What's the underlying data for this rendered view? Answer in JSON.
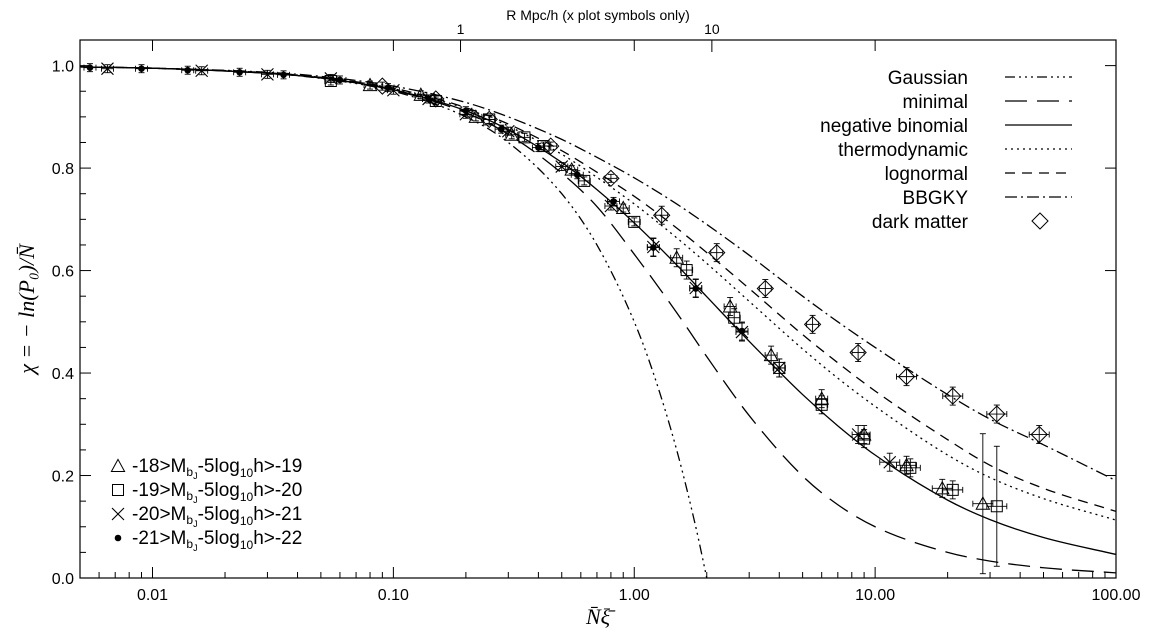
{
  "chart_data": {
    "type": "line",
    "title": "",
    "xlabel": "N̄ξ̄",
    "ylabel": "χ = − ln(P₀)/N̄",
    "xscale": "log",
    "xlim": [
      0.005,
      100
    ],
    "ylim": [
      0.0,
      1.05
    ],
    "x_ticks": [
      {
        "value": 0.01,
        "label": "0.01"
      },
      {
        "value": 0.1,
        "label": "0.10"
      },
      {
        "value": 1,
        "label": "1.00"
      },
      {
        "value": 10,
        "label": "10.00"
      },
      {
        "value": 100,
        "label": "100.00"
      }
    ],
    "y_ticks": [
      {
        "value": 0.0,
        "label": "0.0"
      },
      {
        "value": 0.2,
        "label": "0.2"
      },
      {
        "value": 0.4,
        "label": "0.4"
      },
      {
        "value": 0.6,
        "label": "0.6"
      },
      {
        "value": 0.8,
        "label": "0.8"
      },
      {
        "value": 1.0,
        "label": "1.0"
      }
    ],
    "top_axis": {
      "label": "R Mpc/h (x plot symbols only)",
      "ticks": [
        {
          "label": "1",
          "at_x": 0.19
        },
        {
          "label": "10",
          "at_x": 2.1
        }
      ]
    },
    "grid": false,
    "legend_curves_position": "top-right",
    "legend_points_position": "bottom-left",
    "curves": [
      {
        "name": "Gaussian",
        "dash": "dash-dot-dot-dot",
        "x": [
          0.005,
          0.01,
          0.03,
          0.05,
          0.1,
          0.2,
          0.3,
          0.5,
          0.7,
          1.0,
          1.2,
          1.5,
          1.8,
          2.0
        ],
        "y": [
          0.9975,
          0.995,
          0.985,
          0.975,
          0.95,
          0.9,
          0.85,
          0.75,
          0.65,
          0.5,
          0.4,
          0.25,
          0.1,
          0.0
        ]
      },
      {
        "name": "minimal",
        "dash": "long-dash",
        "x": [
          0.005,
          0.01,
          0.03,
          0.05,
          0.1,
          0.2,
          0.3,
          0.5,
          0.7,
          1.0,
          1.5,
          2.0,
          3.0,
          5.0,
          7.0,
          10.0,
          20.0,
          30.0,
          50.0,
          100.0
        ],
        "y": [
          0.9975,
          0.995,
          0.985,
          0.976,
          0.952,
          0.908,
          0.866,
          0.79,
          0.725,
          0.632,
          0.518,
          0.432,
          0.317,
          0.199,
          0.143,
          0.1,
          0.05,
          0.033,
          0.02,
          0.01
        ]
      },
      {
        "name": "negative binomial",
        "dash": "solid",
        "x": [
          0.005,
          0.01,
          0.03,
          0.05,
          0.1,
          0.2,
          0.3,
          0.5,
          0.7,
          1.0,
          1.5,
          2.0,
          3.0,
          5.0,
          7.0,
          10.0,
          20.0,
          30.0,
          50.0,
          100.0
        ],
        "y": [
          0.9975,
          0.995,
          0.985,
          0.976,
          0.953,
          0.912,
          0.875,
          0.811,
          0.758,
          0.693,
          0.611,
          0.549,
          0.462,
          0.358,
          0.297,
          0.24,
          0.152,
          0.114,
          0.079,
          0.046
        ]
      },
      {
        "name": "thermodynamic",
        "dash": "dotted",
        "x": [
          0.005,
          0.01,
          0.03,
          0.05,
          0.1,
          0.2,
          0.3,
          0.5,
          0.7,
          1.0,
          1.5,
          2.0,
          3.0,
          5.0,
          7.0,
          10.0,
          20.0,
          30.0,
          50.0,
          100.0
        ],
        "y": [
          0.9975,
          0.995,
          0.986,
          0.977,
          0.955,
          0.916,
          0.882,
          0.827,
          0.782,
          0.73,
          0.664,
          0.614,
          0.54,
          0.447,
          0.39,
          0.335,
          0.24,
          0.196,
          0.155,
          0.113
        ]
      },
      {
        "name": "lognormal",
        "dash": "short-dash",
        "x": [
          0.005,
          0.01,
          0.03,
          0.05,
          0.1,
          0.2,
          0.3,
          0.5,
          0.7,
          1.0,
          1.5,
          2.0,
          3.0,
          5.0,
          7.0,
          10.0,
          20.0,
          30.0,
          50.0,
          100.0
        ],
        "y": [
          0.9975,
          0.995,
          0.986,
          0.977,
          0.956,
          0.918,
          0.886,
          0.834,
          0.792,
          0.745,
          0.683,
          0.635,
          0.565,
          0.475,
          0.42,
          0.365,
          0.27,
          0.22,
          0.175,
          0.13
        ]
      },
      {
        "name": "BBGKY",
        "dash": "dash-dot",
        "x": [
          0.005,
          0.01,
          0.03,
          0.05,
          0.1,
          0.2,
          0.3,
          0.5,
          0.7,
          1.0,
          1.5,
          2.0,
          3.0,
          5.0,
          7.0,
          10.0,
          20.0,
          30.0,
          50.0,
          100.0
        ],
        "y": [
          0.9975,
          0.995,
          0.987,
          0.979,
          0.96,
          0.928,
          0.9,
          0.856,
          0.821,
          0.781,
          0.73,
          0.69,
          0.63,
          0.55,
          0.5,
          0.45,
          0.358,
          0.31,
          0.26,
          0.19
        ]
      }
    ],
    "point_series": [
      {
        "name": "-18>M_bJ-5log10h>-19",
        "marker": "triangle",
        "x": [
          0.08,
          0.13,
          0.22,
          0.31,
          0.55,
          0.9,
          1.5,
          2.5,
          3.7,
          6.0,
          9.0,
          13.5,
          19.0,
          28.0
        ],
        "y": [
          0.962,
          0.943,
          0.9,
          0.865,
          0.797,
          0.722,
          0.625,
          0.53,
          0.435,
          0.35,
          0.28,
          0.22,
          0.175,
          0.145
        ]
      },
      {
        "name": "-19>M_bJ-5log10h>-20",
        "marker": "square",
        "x": [
          0.055,
          0.15,
          0.25,
          0.35,
          0.42,
          0.62,
          1.0,
          1.65,
          2.6,
          4.0,
          6.0,
          9.0,
          14.0,
          21.0,
          32.0
        ],
        "y": [
          0.97,
          0.931,
          0.895,
          0.86,
          0.843,
          0.775,
          0.695,
          0.601,
          0.508,
          0.41,
          0.338,
          0.272,
          0.215,
          0.172,
          0.14
        ]
      },
      {
        "name": "-20>M_bJ-5log10h>-21",
        "marker": "cross",
        "x": [
          0.0065,
          0.016,
          0.03,
          0.055,
          0.1,
          0.14,
          0.2,
          0.3,
          0.5,
          0.8,
          1.2,
          1.8,
          2.8,
          4.0,
          8.5,
          11.5
        ],
        "y": [
          0.994,
          0.99,
          0.983,
          0.975,
          0.952,
          0.935,
          0.905,
          0.872,
          0.803,
          0.726,
          0.646,
          0.566,
          0.48,
          0.41,
          0.28,
          0.226
        ]
      },
      {
        "name": "-21>M_bJ-5log10h>-22",
        "marker": "dot",
        "x": [
          0.0055,
          0.009,
          0.014,
          0.023,
          0.035,
          0.06,
          0.095,
          0.14,
          0.2,
          0.28,
          0.4,
          0.58,
          0.82,
          1.2,
          1.8,
          2.8
        ],
        "y": [
          0.996,
          0.994,
          0.991,
          0.987,
          0.982,
          0.972,
          0.957,
          0.935,
          0.912,
          0.876,
          0.84,
          0.787,
          0.735,
          0.645,
          0.565,
          0.482
        ]
      },
      {
        "name": "dark matter",
        "marker": "diamond",
        "x": [
          0.09,
          0.15,
          0.25,
          0.45,
          0.8,
          1.3,
          2.2,
          3.5,
          5.5,
          8.5,
          13.5,
          21.0,
          32.0,
          48.0
        ],
        "y": [
          0.96,
          0.935,
          0.895,
          0.843,
          0.78,
          0.708,
          0.635,
          0.565,
          0.495,
          0.44,
          0.393,
          0.355,
          0.32,
          0.28
        ]
      }
    ],
    "legend": {
      "curves": [
        "Gaussian",
        "minimal",
        "negative binomial",
        "thermodynamic",
        "lognormal",
        "BBGKY",
        "dark matter"
      ],
      "points": [
        {
          "pre": "-18>M",
          "sub1": "b",
          "subsub": "J",
          "mid": "-5log",
          "sub2": "10",
          "post": "h>-19"
        },
        {
          "pre": "-19>M",
          "sub1": "b",
          "subsub": "J",
          "mid": "-5log",
          "sub2": "10",
          "post": "h>-20"
        },
        {
          "pre": "-20>M",
          "sub1": "b",
          "subsub": "J",
          "mid": "-5log",
          "sub2": "10",
          "post": "h>-21"
        },
        {
          "pre": "-21>M",
          "sub1": "b",
          "subsub": "J",
          "mid": "-5log",
          "sub2": "10",
          "post": "h>-22"
        }
      ]
    }
  }
}
